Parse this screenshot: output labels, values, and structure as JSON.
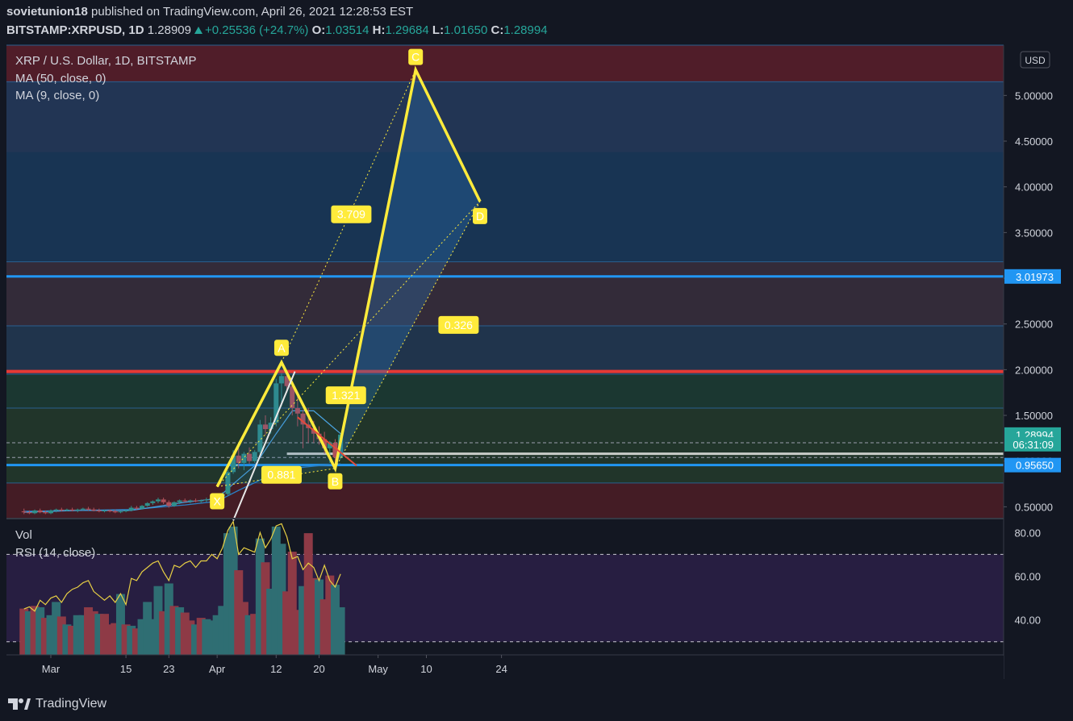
{
  "header": {
    "publisher": "sovietunion18",
    "published_text": "published on TradingView.com, April 26, 2021 12:28:53 EST",
    "symbol": "BITSTAMP:XRPUSD, 1D",
    "last": "1.28909",
    "change": "+0.25536 (+24.7%)",
    "o_label": "O:",
    "o_value": "1.03514",
    "h_label": "H:",
    "h_value": "1.29684",
    "l_label": "L:",
    "l_value": "1.01650",
    "c_label": "C:",
    "c_value": "1.28994"
  },
  "legend": {
    "title": "XRP / U.S. Dollar, 1D, BITSTAMP",
    "ma50": "MA (50, close, 0)",
    "ma9": "MA (9, close, 0)",
    "vol": "Vol",
    "rsi": "RSI (14, close)"
  },
  "footer": {
    "brand": "TradingView"
  },
  "colors": {
    "up": "#26a69a",
    "down": "#ef5350",
    "pattern": "#ffeb3b",
    "blue_line": "#2196f3",
    "red_line": "#e53935",
    "rsi_line": "#e8d044"
  },
  "chart_data": {
    "type": "candlestick",
    "title": "XRP / U.S. Dollar, 1D, BITSTAMP",
    "currency": "USD",
    "price_ticks": [
      "5.00000",
      "4.50000",
      "4.00000",
      "3.50000",
      "3.00000",
      "2.50000",
      "2.00000",
      "1.50000",
      "1.00000",
      "0.50000"
    ],
    "price_range": [
      0.38,
      5.55
    ],
    "price_labels": [
      {
        "text": "3.01973",
        "value": 3.01973,
        "color": "#2196f3"
      },
      {
        "text": "1.28994",
        "value": 1.28994,
        "color": "#26a69a"
      },
      {
        "text": "06:31:09",
        "value": 1.185,
        "color": "#26a69a"
      },
      {
        "text": "0.95650",
        "value": 0.9565,
        "color": "#2196f3"
      }
    ],
    "x_ticks": [
      {
        "label": "Mar",
        "day": 0
      },
      {
        "label": "15",
        "day": 14
      },
      {
        "label": "23",
        "day": 22
      },
      {
        "label": "Apr",
        "day": 31
      },
      {
        "label": "12",
        "day": 42
      },
      {
        "label": "20",
        "day": 50
      },
      {
        "label": "May",
        "day": 61
      },
      {
        "label": "10",
        "day": 70
      },
      {
        "label": "24",
        "day": 84
      }
    ],
    "candles": [
      {
        "day": -5,
        "o": 0.45,
        "h": 0.48,
        "l": 0.42,
        "c": 0.44
      },
      {
        "day": -4,
        "o": 0.44,
        "h": 0.46,
        "l": 0.42,
        "c": 0.43
      },
      {
        "day": -3,
        "o": 0.43,
        "h": 0.47,
        "l": 0.42,
        "c": 0.46
      },
      {
        "day": -2,
        "o": 0.46,
        "h": 0.48,
        "l": 0.43,
        "c": 0.44
      },
      {
        "day": -1,
        "o": 0.44,
        "h": 0.46,
        "l": 0.42,
        "c": 0.43
      },
      {
        "day": 0,
        "o": 0.43,
        "h": 0.47,
        "l": 0.42,
        "c": 0.46
      },
      {
        "day": 1,
        "o": 0.46,
        "h": 0.48,
        "l": 0.44,
        "c": 0.47
      },
      {
        "day": 2,
        "o": 0.47,
        "h": 0.49,
        "l": 0.45,
        "c": 0.46
      },
      {
        "day": 3,
        "o": 0.46,
        "h": 0.48,
        "l": 0.45,
        "c": 0.47
      },
      {
        "day": 4,
        "o": 0.47,
        "h": 0.49,
        "l": 0.45,
        "c": 0.46
      },
      {
        "day": 5,
        "o": 0.46,
        "h": 0.48,
        "l": 0.44,
        "c": 0.47
      },
      {
        "day": 6,
        "o": 0.47,
        "h": 0.49,
        "l": 0.46,
        "c": 0.48
      },
      {
        "day": 7,
        "o": 0.48,
        "h": 0.5,
        "l": 0.46,
        "c": 0.47
      },
      {
        "day": 8,
        "o": 0.47,
        "h": 0.49,
        "l": 0.45,
        "c": 0.46
      },
      {
        "day": 9,
        "o": 0.46,
        "h": 0.48,
        "l": 0.44,
        "c": 0.45
      },
      {
        "day": 10,
        "o": 0.45,
        "h": 0.47,
        "l": 0.44,
        "c": 0.46
      },
      {
        "day": 11,
        "o": 0.46,
        "h": 0.47,
        "l": 0.44,
        "c": 0.45
      },
      {
        "day": 12,
        "o": 0.45,
        "h": 0.47,
        "l": 0.43,
        "c": 0.44
      },
      {
        "day": 13,
        "o": 0.44,
        "h": 0.46,
        "l": 0.43,
        "c": 0.45
      },
      {
        "day": 14,
        "o": 0.45,
        "h": 0.47,
        "l": 0.44,
        "c": 0.46
      },
      {
        "day": 15,
        "o": 0.46,
        "h": 0.51,
        "l": 0.45,
        "c": 0.49
      },
      {
        "day": 16,
        "o": 0.49,
        "h": 0.51,
        "l": 0.47,
        "c": 0.48
      },
      {
        "day": 17,
        "o": 0.48,
        "h": 0.52,
        "l": 0.47,
        "c": 0.51
      },
      {
        "day": 18,
        "o": 0.51,
        "h": 0.55,
        "l": 0.5,
        "c": 0.54
      },
      {
        "day": 19,
        "o": 0.54,
        "h": 0.57,
        "l": 0.52,
        "c": 0.56
      },
      {
        "day": 20,
        "o": 0.56,
        "h": 0.6,
        "l": 0.54,
        "c": 0.58
      },
      {
        "day": 21,
        "o": 0.58,
        "h": 0.6,
        "l": 0.53,
        "c": 0.55
      },
      {
        "day": 22,
        "o": 0.55,
        "h": 0.57,
        "l": 0.49,
        "c": 0.51
      },
      {
        "day": 23,
        "o": 0.51,
        "h": 0.56,
        "l": 0.5,
        "c": 0.55
      },
      {
        "day": 24,
        "o": 0.55,
        "h": 0.58,
        "l": 0.53,
        "c": 0.57
      },
      {
        "day": 25,
        "o": 0.57,
        "h": 0.59,
        "l": 0.55,
        "c": 0.56
      },
      {
        "day": 26,
        "o": 0.56,
        "h": 0.58,
        "l": 0.54,
        "c": 0.57
      },
      {
        "day": 27,
        "o": 0.57,
        "h": 0.59,
        "l": 0.55,
        "c": 0.56
      },
      {
        "day": 28,
        "o": 0.56,
        "h": 0.58,
        "l": 0.54,
        "c": 0.57
      },
      {
        "day": 29,
        "o": 0.57,
        "h": 0.6,
        "l": 0.55,
        "c": 0.58
      },
      {
        "day": 30,
        "o": 0.58,
        "h": 0.61,
        "l": 0.56,
        "c": 0.59
      },
      {
        "day": 31,
        "o": 0.59,
        "h": 0.63,
        "l": 0.57,
        "c": 0.62
      },
      {
        "day": 32,
        "o": 0.62,
        "h": 0.66,
        "l": 0.6,
        "c": 0.64
      },
      {
        "day": 33,
        "o": 0.64,
        "h": 0.9,
        "l": 0.62,
        "c": 0.88
      },
      {
        "day": 34,
        "o": 0.88,
        "h": 1.12,
        "l": 0.86,
        "c": 1.06
      },
      {
        "day": 35,
        "o": 1.06,
        "h": 1.14,
        "l": 0.92,
        "c": 0.98
      },
      {
        "day": 36,
        "o": 0.98,
        "h": 1.1,
        "l": 0.9,
        "c": 1.08
      },
      {
        "day": 37,
        "o": 1.08,
        "h": 1.15,
        "l": 0.97,
        "c": 1.0
      },
      {
        "day": 38,
        "o": 1.0,
        "h": 1.12,
        "l": 0.98,
        "c": 1.1
      },
      {
        "day": 39,
        "o": 1.1,
        "h": 1.45,
        "l": 1.04,
        "c": 1.4
      },
      {
        "day": 40,
        "o": 1.4,
        "h": 1.5,
        "l": 1.28,
        "c": 1.35
      },
      {
        "day": 41,
        "o": 1.35,
        "h": 1.48,
        "l": 1.3,
        "c": 1.42
      },
      {
        "day": 42,
        "o": 1.42,
        "h": 1.9,
        "l": 1.38,
        "c": 1.85
      },
      {
        "day": 43,
        "o": 1.85,
        "h": 1.96,
        "l": 1.6,
        "c": 1.93
      },
      {
        "day": 44,
        "o": 1.93,
        "h": 1.97,
        "l": 1.75,
        "c": 1.82
      },
      {
        "day": 45,
        "o": 1.82,
        "h": 1.86,
        "l": 1.5,
        "c": 1.58
      },
      {
        "day": 46,
        "o": 1.58,
        "h": 1.72,
        "l": 1.38,
        "c": 1.52
      },
      {
        "day": 47,
        "o": 1.52,
        "h": 1.56,
        "l": 1.14,
        "c": 1.4
      },
      {
        "day": 48,
        "o": 1.4,
        "h": 1.58,
        "l": 1.2,
        "c": 1.36
      },
      {
        "day": 49,
        "o": 1.36,
        "h": 1.44,
        "l": 1.2,
        "c": 1.3
      },
      {
        "day": 50,
        "o": 1.3,
        "h": 1.38,
        "l": 1.18,
        "c": 1.24
      },
      {
        "day": 51,
        "o": 1.24,
        "h": 1.32,
        "l": 1.08,
        "c": 1.14
      },
      {
        "day": 52,
        "o": 1.14,
        "h": 1.22,
        "l": 0.98,
        "c": 1.2
      },
      {
        "day": 53,
        "o": 1.2,
        "h": 1.24,
        "l": 0.96,
        "c": 1.04
      },
      {
        "day": 54,
        "o": 1.04,
        "h": 1.3,
        "l": 1.02,
        "c": 1.28994
      }
    ],
    "ma50": [
      [
        -5,
        0.45
      ],
      [
        5,
        0.46
      ],
      [
        15,
        0.47
      ],
      [
        25,
        0.52
      ],
      [
        31,
        0.56
      ],
      [
        35,
        0.68
      ],
      [
        40,
        0.82
      ],
      [
        45,
        0.92
      ],
      [
        50,
        0.95
      ],
      [
        54,
        0.97
      ]
    ],
    "ma9": [
      [
        -5,
        0.44
      ],
      [
        5,
        0.46
      ],
      [
        15,
        0.46
      ],
      [
        25,
        0.55
      ],
      [
        31,
        0.59
      ],
      [
        34,
        0.75
      ],
      [
        38,
        0.95
      ],
      [
        42,
        1.3
      ],
      [
        45,
        1.55
      ],
      [
        49,
        1.55
      ],
      [
        52,
        1.4
      ],
      [
        54,
        1.3
      ]
    ],
    "pattern_points": [
      {
        "label": "X",
        "day": 31,
        "price": 0.72
      },
      {
        "label": "A",
        "day": 43,
        "price": 2.08
      },
      {
        "label": "B",
        "day": 53,
        "price": 0.92
      },
      {
        "label": "C",
        "day": 68,
        "price": 5.28
      },
      {
        "label": "D",
        "day": 80,
        "price": 3.84
      }
    ],
    "ratios": [
      {
        "text": "0.881",
        "day": 43,
        "price": 0.85
      },
      {
        "text": "1.321",
        "day": 55,
        "price": 1.72
      },
      {
        "text": "3.709",
        "day": 56,
        "price": 3.7
      },
      {
        "text": "0.326",
        "day": 76,
        "price": 2.49
      }
    ],
    "zones": [
      {
        "from": 4.38,
        "to": 5.55,
        "color": "#5c1f2a"
      },
      {
        "from": 3.18,
        "to": 5.15,
        "color": "#1a3a5c"
      },
      {
        "from": 2.48,
        "to": 3.18,
        "color": "#3a2f3d"
      },
      {
        "from": 1.95,
        "to": 2.48,
        "color": "#233954"
      },
      {
        "from": 1.58,
        "to": 1.95,
        "color": "#1d3d34"
      },
      {
        "from": 0.76,
        "to": 1.58,
        "color": "#243b2c"
      },
      {
        "from": 0.38,
        "to": 0.76,
        "color": "#4e1d26"
      }
    ],
    "hlines": [
      {
        "value": 3.01973,
        "color": "#2196f3",
        "width": 3
      },
      {
        "value": 1.98,
        "color": "#e53935",
        "width": 4
      },
      {
        "value": 0.9565,
        "color": "#2196f3",
        "width": 3
      }
    ],
    "volume": [
      {
        "day": -5,
        "v": 0.35,
        "up": false
      },
      {
        "day": -4,
        "v": 0.33,
        "up": true
      },
      {
        "day": -3,
        "v": 0.37,
        "up": false
      },
      {
        "day": -2,
        "v": 0.36,
        "up": true
      },
      {
        "day": -1,
        "v": 0.28,
        "up": false
      },
      {
        "day": 0,
        "v": 0.3,
        "up": true
      },
      {
        "day": 1,
        "v": 0.4,
        "up": true
      },
      {
        "day": 2,
        "v": 0.29,
        "up": false
      },
      {
        "day": 3,
        "v": 0.23,
        "up": true
      },
      {
        "day": 4,
        "v": 0.22,
        "up": false
      },
      {
        "day": 5,
        "v": 0.3,
        "up": true
      },
      {
        "day": 6,
        "v": 0.3,
        "up": true
      },
      {
        "day": 7,
        "v": 0.36,
        "up": false
      },
      {
        "day": 8,
        "v": 0.33,
        "up": false
      },
      {
        "day": 9,
        "v": 0.31,
        "up": true
      },
      {
        "day": 10,
        "v": 0.31,
        "up": false
      },
      {
        "day": 11,
        "v": 0.23,
        "up": false
      },
      {
        "day": 12,
        "v": 0.24,
        "up": false
      },
      {
        "day": 13,
        "v": 0.46,
        "up": true
      },
      {
        "day": 14,
        "v": 0.23,
        "up": false
      },
      {
        "day": 15,
        "v": 0.22,
        "up": true
      },
      {
        "day": 16,
        "v": 0.2,
        "up": false
      },
      {
        "day": 17,
        "v": 0.27,
        "up": true
      },
      {
        "day": 18,
        "v": 0.4,
        "up": true
      },
      {
        "day": 19,
        "v": 0.27,
        "up": true
      },
      {
        "day": 20,
        "v": 0.52,
        "up": true
      },
      {
        "day": 21,
        "v": 0.33,
        "up": false
      },
      {
        "day": 22,
        "v": 0.54,
        "up": true
      },
      {
        "day": 23,
        "v": 0.37,
        "up": false
      },
      {
        "day": 24,
        "v": 0.36,
        "up": true
      },
      {
        "day": 25,
        "v": 0.32,
        "up": false
      },
      {
        "day": 26,
        "v": 0.26,
        "up": false
      },
      {
        "day": 27,
        "v": 0.23,
        "up": true
      },
      {
        "day": 28,
        "v": 0.28,
        "up": false
      },
      {
        "day": 29,
        "v": 0.27,
        "up": true
      },
      {
        "day": 30,
        "v": 0.26,
        "up": true
      },
      {
        "day": 31,
        "v": 0.3,
        "up": true
      },
      {
        "day": 32,
        "v": 0.37,
        "up": true
      },
      {
        "day": 33,
        "v": 0.92,
        "up": true
      },
      {
        "day": 34,
        "v": 0.97,
        "up": true
      },
      {
        "day": 35,
        "v": 0.64,
        "up": false
      },
      {
        "day": 36,
        "v": 0.4,
        "up": false
      },
      {
        "day": 37,
        "v": 0.3,
        "up": true
      },
      {
        "day": 38,
        "v": 0.31,
        "up": false
      },
      {
        "day": 39,
        "v": 0.88,
        "up": true
      },
      {
        "day": 40,
        "v": 0.7,
        "up": false
      },
      {
        "day": 41,
        "v": 0.5,
        "up": true
      },
      {
        "day": 42,
        "v": 0.97,
        "up": true
      },
      {
        "day": 43,
        "v": 0.84,
        "up": true
      },
      {
        "day": 44,
        "v": 0.48,
        "up": false
      },
      {
        "day": 45,
        "v": 0.78,
        "up": false
      },
      {
        "day": 46,
        "v": 0.34,
        "up": false
      },
      {
        "day": 47,
        "v": 0.52,
        "up": true
      },
      {
        "day": 48,
        "v": 0.92,
        "up": false
      },
      {
        "day": 49,
        "v": 0.58,
        "up": false
      },
      {
        "day": 50,
        "v": 0.57,
        "up": true
      },
      {
        "day": 51,
        "v": 0.42,
        "up": false
      },
      {
        "day": 52,
        "v": 0.6,
        "up": false
      },
      {
        "day": 53,
        "v": 0.53,
        "up": true
      },
      {
        "day": 54,
        "v": 0.36,
        "up": true
      }
    ],
    "rsi_ticks": [
      "80.00",
      "60.00",
      "40.00"
    ],
    "rsi_range": [
      24,
      86
    ],
    "rsi_levels": [
      70,
      30
    ],
    "rsi": [
      [
        -5,
        45
      ],
      [
        -4,
        46
      ],
      [
        -3,
        44
      ],
      [
        -2,
        49
      ],
      [
        -1,
        47
      ],
      [
        0,
        50
      ],
      [
        1,
        51
      ],
      [
        2,
        48
      ],
      [
        3,
        52
      ],
      [
        4,
        54
      ],
      [
        5,
        55
      ],
      [
        6,
        57
      ],
      [
        7,
        58
      ],
      [
        8,
        53
      ],
      [
        9,
        51
      ],
      [
        10,
        49
      ],
      [
        11,
        51
      ],
      [
        12,
        48
      ],
      [
        13,
        52
      ],
      [
        14,
        47
      ],
      [
        15,
        59
      ],
      [
        16,
        58
      ],
      [
        17,
        62
      ],
      [
        18,
        64
      ],
      [
        19,
        66
      ],
      [
        20,
        67
      ],
      [
        21,
        62
      ],
      [
        22,
        58
      ],
      [
        23,
        65
      ],
      [
        24,
        64
      ],
      [
        25,
        66
      ],
      [
        26,
        67
      ],
      [
        27,
        64
      ],
      [
        28,
        67
      ],
      [
        29,
        67
      ],
      [
        30,
        70
      ],
      [
        31,
        68
      ],
      [
        32,
        73
      ],
      [
        33,
        81
      ],
      [
        34,
        85
      ],
      [
        35,
        70
      ],
      [
        36,
        73
      ],
      [
        37,
        72
      ],
      [
        38,
        71
      ],
      [
        39,
        80
      ],
      [
        40,
        73
      ],
      [
        41,
        77
      ],
      [
        42,
        83
      ],
      [
        43,
        84
      ],
      [
        44,
        78
      ],
      [
        45,
        68
      ],
      [
        46,
        69
      ],
      [
        47,
        63
      ],
      [
        48,
        66
      ],
      [
        49,
        64
      ],
      [
        50,
        58
      ],
      [
        51,
        65
      ],
      [
        52,
        58
      ],
      [
        53,
        55
      ],
      [
        54,
        61
      ]
    ]
  }
}
